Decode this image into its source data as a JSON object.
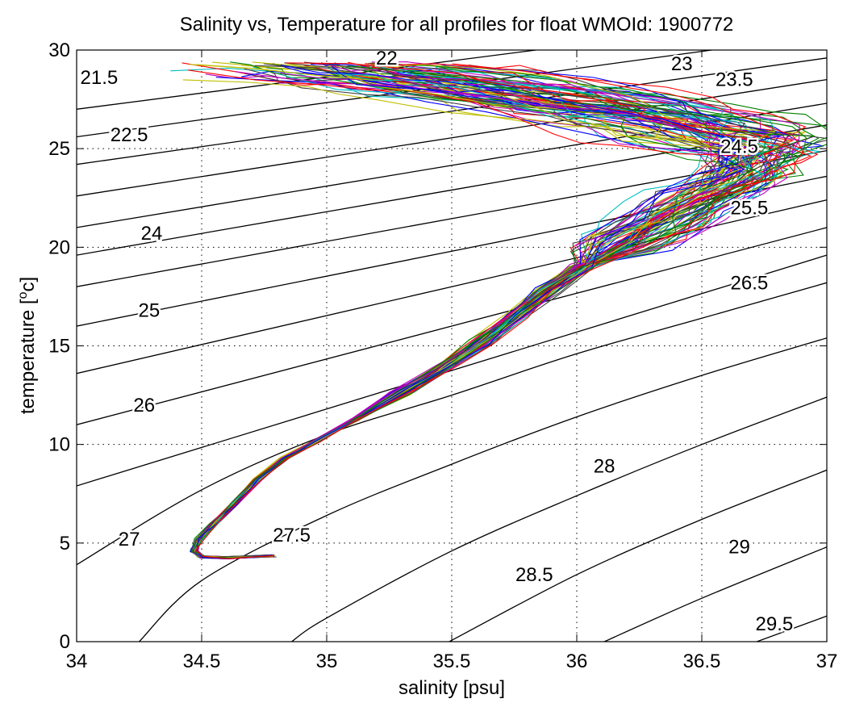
{
  "chart_data": {
    "type": "line",
    "title": "Salinity vs, Temperature for all profiles for float WMOId: 1900772",
    "xlabel": "salinity [psu]",
    "ylabel_main": "temperature [",
    "ylabel_sup": "o",
    "ylabel_end": "c]",
    "xlim": [
      34,
      37
    ],
    "ylim": [
      0,
      30
    ],
    "xticks": [
      34,
      34.5,
      35,
      35.5,
      36,
      36.5,
      37
    ],
    "xtick_labels": [
      "34",
      "34.5",
      "35",
      "35.5",
      "36",
      "36.5",
      "37"
    ],
    "yticks": [
      0,
      5,
      10,
      15,
      20,
      25,
      30
    ],
    "ytick_labels": [
      "0",
      "5",
      "10",
      "15",
      "20",
      "25",
      "30"
    ],
    "grid": true,
    "contours": [
      {
        "label": "21.5",
        "points": [
          [
            34,
            27.0
          ],
          [
            37,
            31.9
          ]
        ]
      },
      {
        "label": "22",
        "points": [
          [
            34,
            25.6
          ],
          [
            37,
            30.8
          ]
        ]
      },
      {
        "label": "22.5",
        "points": [
          [
            34,
            24.2
          ],
          [
            37,
            29.6
          ]
        ]
      },
      {
        "label": "23",
        "points": [
          [
            34,
            22.6
          ],
          [
            37,
            28.5
          ]
        ]
      },
      {
        "label": "23.5",
        "points": [
          [
            34,
            21.0
          ],
          [
            37,
            27.3
          ]
        ]
      },
      {
        "label": "24",
        "points": [
          [
            34,
            19.6
          ],
          [
            37,
            26.2
          ]
        ]
      },
      {
        "label": "24.5",
        "points": [
          [
            34,
            18.0
          ],
          [
            37,
            24.9
          ]
        ]
      },
      {
        "label": "25",
        "points": [
          [
            34,
            16.0
          ],
          [
            37,
            23.6
          ]
        ]
      },
      {
        "label": "25.5",
        "points": [
          [
            34,
            13.6
          ],
          [
            37,
            22.4
          ]
        ]
      },
      {
        "label": "26",
        "points": [
          [
            34,
            11.0
          ],
          [
            37,
            21.0
          ]
        ]
      },
      {
        "label": "26.5",
        "points": [
          [
            34,
            7.9
          ],
          [
            37,
            19.6
          ]
        ]
      },
      {
        "label": "27",
        "points": [
          [
            34,
            3.9
          ],
          [
            34.5,
            7.7
          ],
          [
            35,
            10.5
          ],
          [
            35.5,
            12.5
          ],
          [
            36,
            14.6
          ],
          [
            36.5,
            16.4
          ],
          [
            37,
            18.2
          ]
        ]
      },
      {
        "label": "27.5",
        "points": [
          [
            34.25,
            0
          ],
          [
            34.5,
            3.1
          ],
          [
            35,
            6.4
          ],
          [
            35.5,
            9.0
          ],
          [
            36,
            11.4
          ],
          [
            36.5,
            13.5
          ],
          [
            37,
            15.4
          ]
        ]
      },
      {
        "label": "28",
        "points": [
          [
            34.86,
            0
          ],
          [
            35,
            1.2
          ],
          [
            35.5,
            4.6
          ],
          [
            36,
            7.4
          ],
          [
            36.5,
            10.0
          ],
          [
            37,
            12.4
          ]
        ]
      },
      {
        "label": "28.5",
        "points": [
          [
            35.49,
            0
          ],
          [
            36,
            3.4
          ],
          [
            36.5,
            6.2
          ],
          [
            37,
            8.7
          ]
        ]
      },
      {
        "label": "29",
        "points": [
          [
            36.11,
            0
          ],
          [
            36.5,
            2.2
          ],
          [
            37,
            4.8
          ]
        ]
      },
      {
        "label": "29.5",
        "points": [
          [
            36.72,
            0
          ],
          [
            37,
            1.3
          ]
        ]
      }
    ],
    "contour_labels": [
      {
        "text": "21.5",
        "x": 34.09,
        "y": 28.6
      },
      {
        "text": "22",
        "x": 35.24,
        "y": 29.6
      },
      {
        "text": "22.5",
        "x": 34.21,
        "y": 25.7
      },
      {
        "text": "23",
        "x": 36.42,
        "y": 29.3
      },
      {
        "text": "23.5",
        "x": 36.63,
        "y": 28.5
      },
      {
        "text": "24",
        "x": 34.3,
        "y": 20.7
      },
      {
        "text": "24.5",
        "x": 36.65,
        "y": 25.1
      },
      {
        "text": "25",
        "x": 34.29,
        "y": 16.8
      },
      {
        "text": "25.5",
        "x": 36.69,
        "y": 22.0
      },
      {
        "text": "26",
        "x": 34.27,
        "y": 12.0
      },
      {
        "text": "26.5",
        "x": 36.69,
        "y": 18.2
      },
      {
        "text": "27",
        "x": 34.21,
        "y": 5.2
      },
      {
        "text": "27.5",
        "x": 34.86,
        "y": 5.4
      },
      {
        "text": "28",
        "x": 36.11,
        "y": 8.9
      },
      {
        "text": "28.5",
        "x": 35.83,
        "y": 3.4
      },
      {
        "text": "29",
        "x": 36.65,
        "y": 4.8
      },
      {
        "text": "29.5",
        "x": 36.79,
        "y": 0.9
      }
    ],
    "profile_count": 80,
    "profile_colors": [
      "#0000ff",
      "#008000",
      "#ff0000",
      "#00bfbf",
      "#bf00bf",
      "#bfbf00",
      "#404040"
    ],
    "mean_profile": [
      [
        34.78,
        4.35
      ],
      [
        34.6,
        4.25
      ],
      [
        34.5,
        4.3
      ],
      [
        34.47,
        4.6
      ],
      [
        34.49,
        5.2
      ],
      [
        34.55,
        6.0
      ],
      [
        34.63,
        7.0
      ],
      [
        34.72,
        8.2
      ],
      [
        34.83,
        9.3
      ],
      [
        34.96,
        10.2
      ],
      [
        35.12,
        11.3
      ],
      [
        35.3,
        12.6
      ],
      [
        35.48,
        14.0
      ],
      [
        35.62,
        15.2
      ],
      [
        35.75,
        16.5
      ],
      [
        35.88,
        17.8
      ],
      [
        36.02,
        19.0
      ],
      [
        36.18,
        20.2
      ],
      [
        36.35,
        21.3
      ],
      [
        36.52,
        22.6
      ],
      [
        36.68,
        23.8
      ],
      [
        36.72,
        24.7
      ],
      [
        36.55,
        25.6
      ],
      [
        36.3,
        26.4
      ],
      [
        36.0,
        27.2
      ],
      [
        35.6,
        28.0
      ],
      [
        35.2,
        28.6
      ],
      [
        34.9,
        29.2
      ]
    ]
  }
}
